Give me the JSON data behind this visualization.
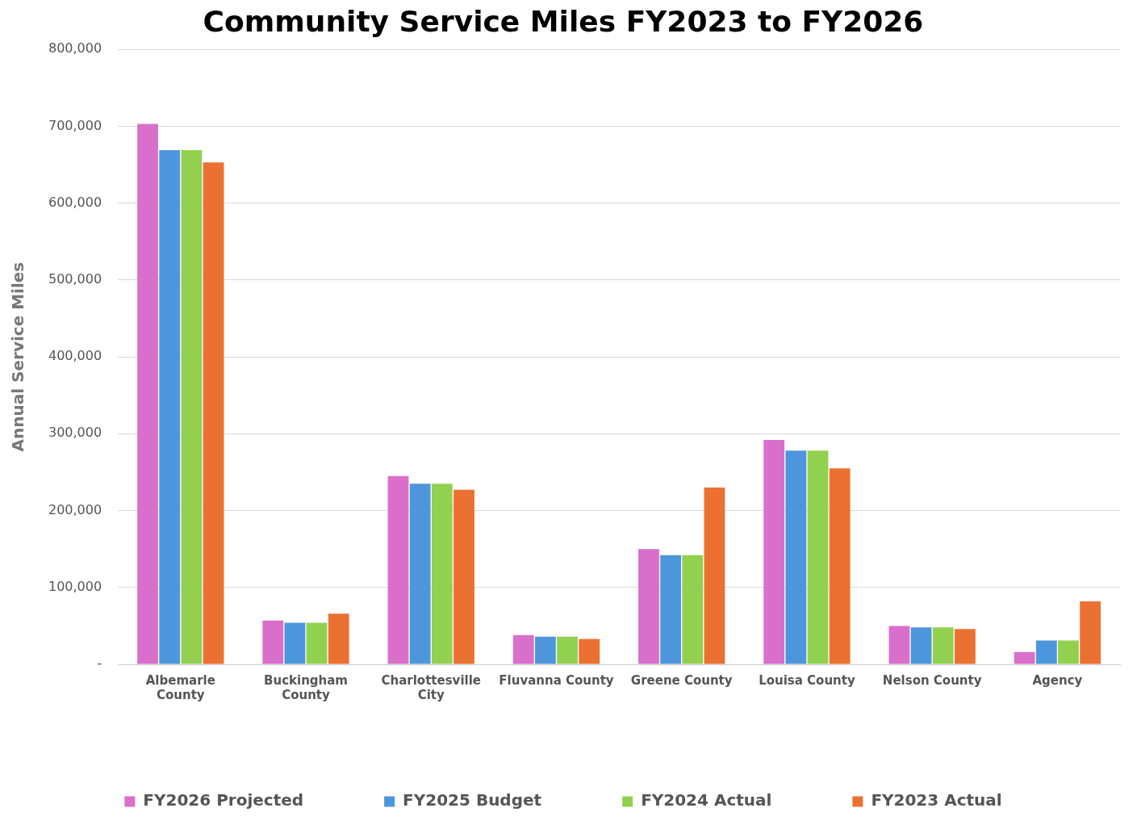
{
  "chart_data": {
    "type": "bar",
    "title": "Community Service Miles FY2023 to FY2026",
    "ylabel": "Annual Service Miles",
    "categories": [
      "Albemarle County",
      "Buckingham County",
      "Charlottesville City",
      "Fluvanna County",
      "Greene County",
      "Louisa County",
      "Nelson County",
      "Agency"
    ],
    "series": [
      {
        "name": "FY2026 Projected",
        "color": "#d96fcb",
        "values": [
          703000,
          57000,
          245000,
          38000,
          150000,
          292000,
          50000,
          16000
        ]
      },
      {
        "name": "FY2025 Budget",
        "color": "#4e96dc",
        "values": [
          669000,
          54000,
          235000,
          36000,
          142000,
          278000,
          48000,
          31000
        ]
      },
      {
        "name": "FY2024 Actual",
        "color": "#92d050",
        "values": [
          669000,
          54000,
          235000,
          36000,
          142000,
          278000,
          48000,
          31000
        ]
      },
      {
        "name": "FY2023 Actual",
        "color": "#ea7131",
        "values": [
          653000,
          66000,
          227000,
          33000,
          230000,
          255000,
          46000,
          82000
        ]
      }
    ],
    "ylim": [
      0,
      800000
    ],
    "yticks": [
      {
        "value": 0,
        "label": "-"
      },
      {
        "value": 100000,
        "label": "100,000"
      },
      {
        "value": 200000,
        "label": "200,000"
      },
      {
        "value": 300000,
        "label": "300,000"
      },
      {
        "value": 400000,
        "label": "400,000"
      },
      {
        "value": 500000,
        "label": "500,000"
      },
      {
        "value": 600000,
        "label": "600,000"
      },
      {
        "value": 700000,
        "label": "700,000"
      },
      {
        "value": 800000,
        "label": "800,000"
      }
    ],
    "grid": "y",
    "legend": "bottom"
  }
}
